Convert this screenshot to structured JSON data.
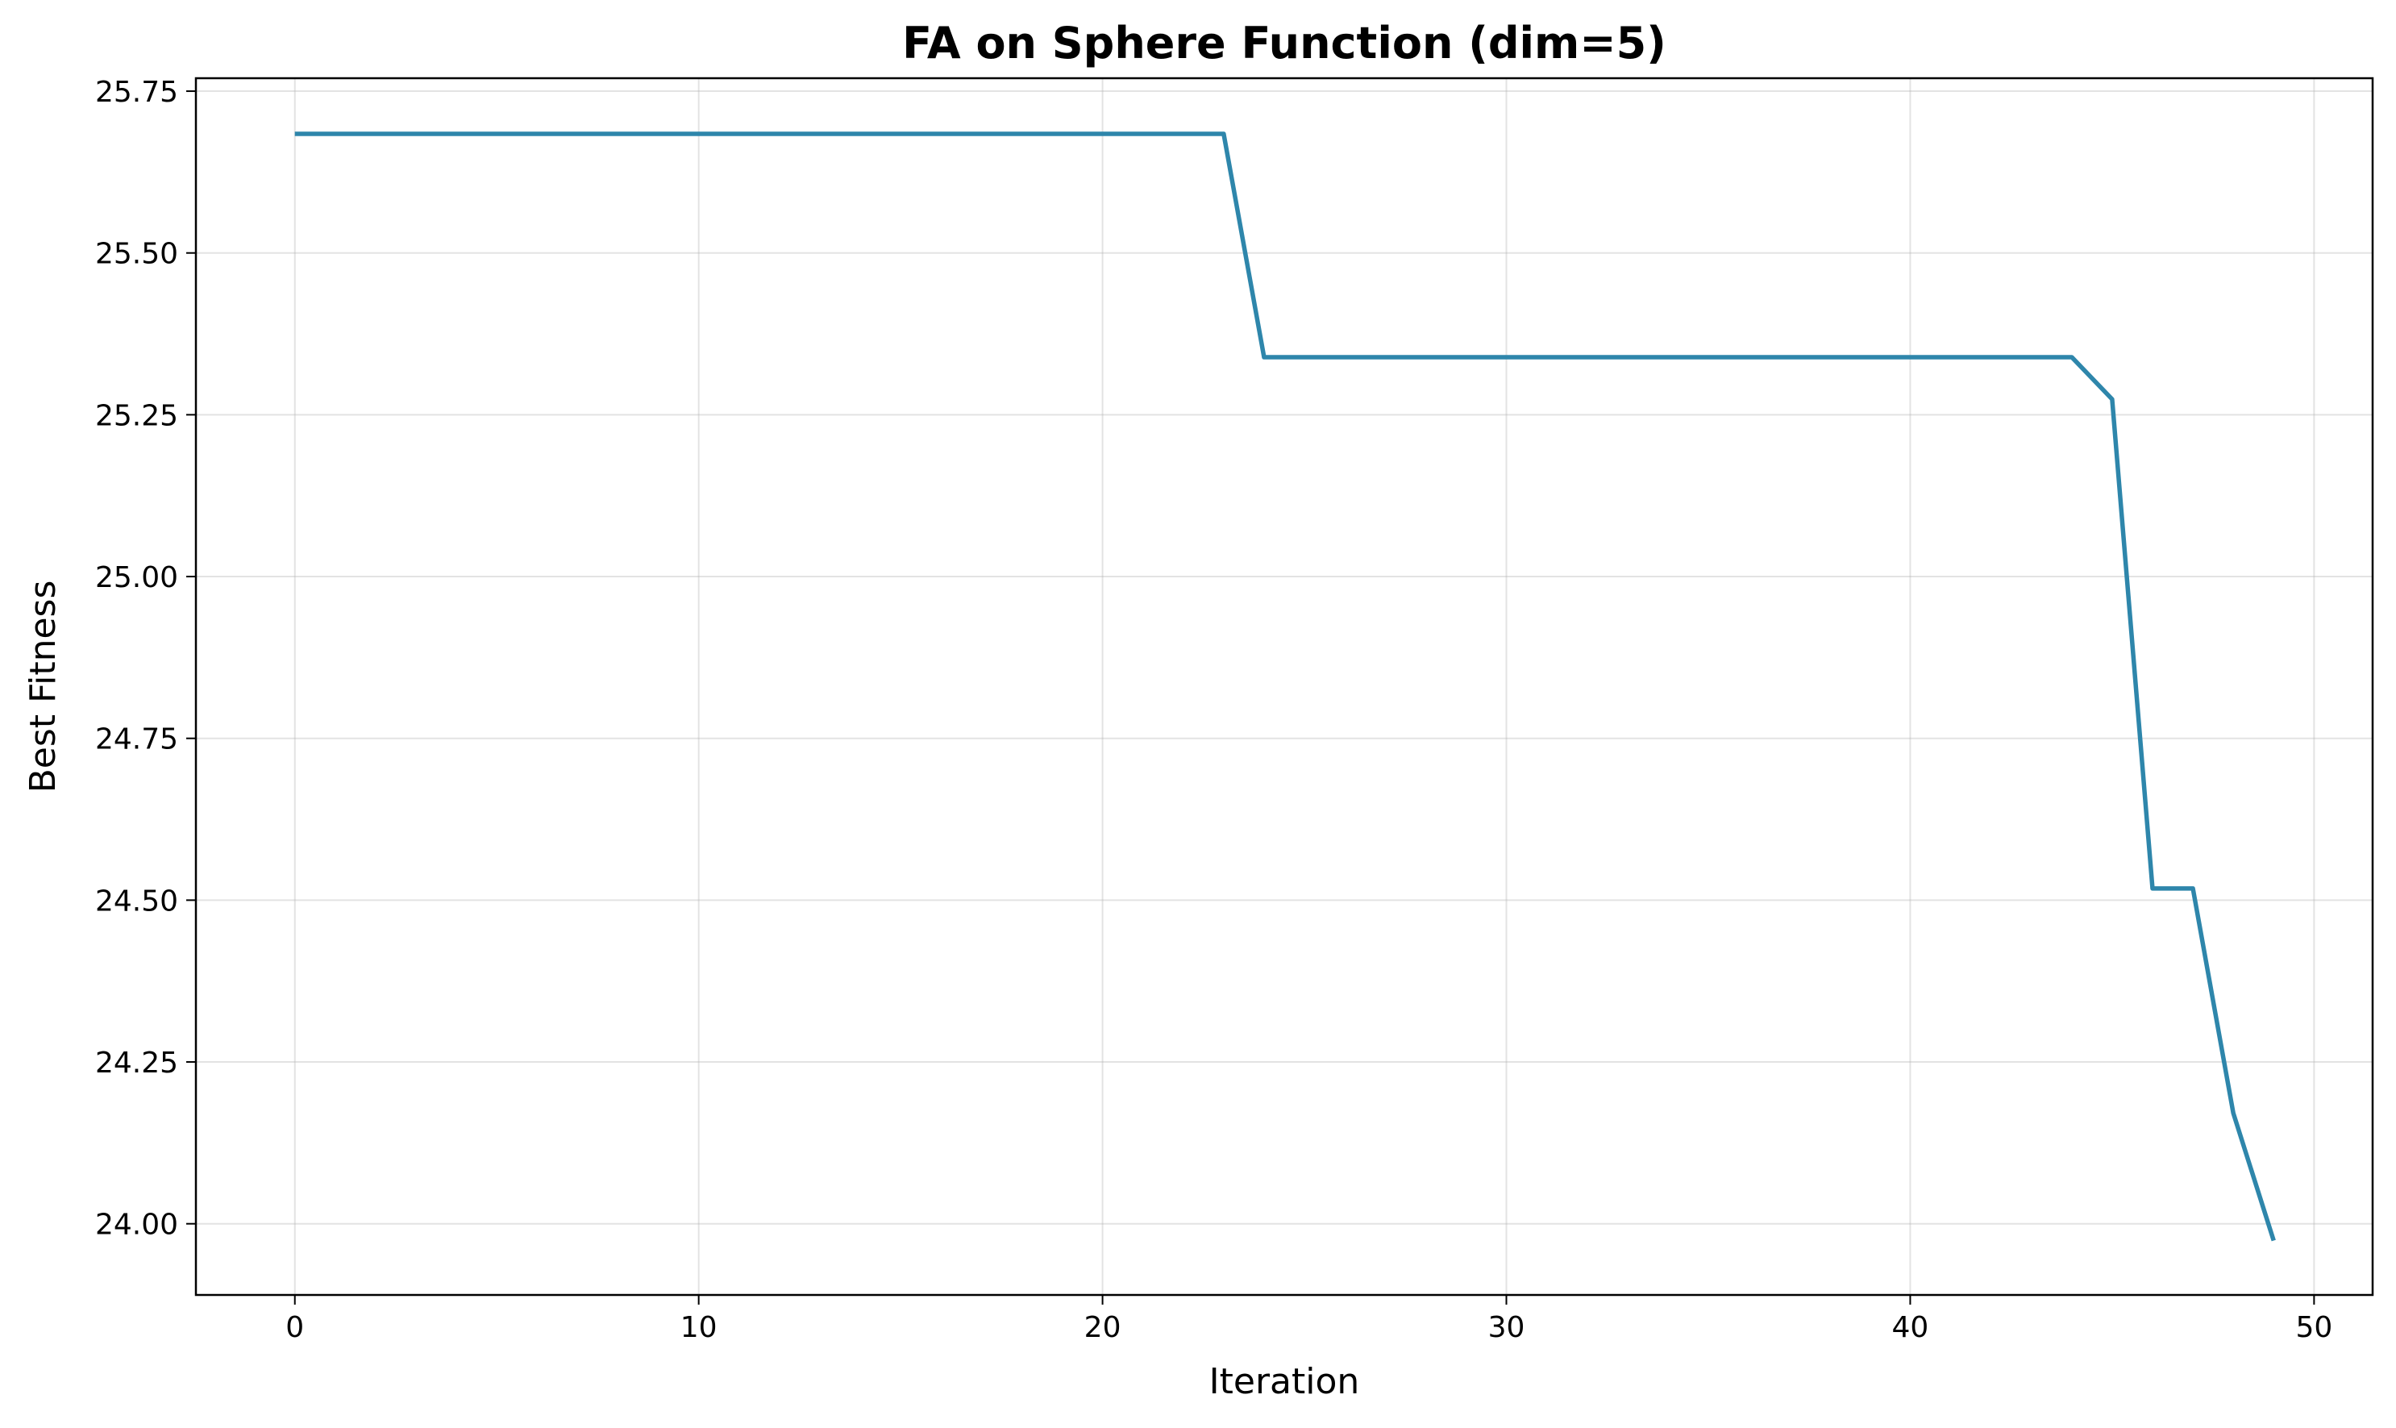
{
  "chart_data": {
    "type": "line",
    "title": "FA on Sphere Function (dim=5)",
    "xlabel": "Iteration",
    "ylabel": "Best Fitness",
    "xlim": [
      -2.45,
      51.45
    ],
    "ylim": [
      23.89,
      25.77
    ],
    "xticks": [
      0,
      10,
      20,
      30,
      40,
      50
    ],
    "xtick_labels": [
      "0",
      "10",
      "20",
      "30",
      "40",
      "50"
    ],
    "yticks": [
      24.0,
      24.25,
      24.5,
      24.75,
      25.0,
      25.25,
      25.5,
      25.75
    ],
    "ytick_labels": [
      "24.00",
      "24.25",
      "24.50",
      "24.75",
      "25.00",
      "25.25",
      "25.50",
      "25.75"
    ],
    "grid": true,
    "legend": "none",
    "line_color": "#2e86ab",
    "series": [
      {
        "x": [
          0,
          1,
          2,
          3,
          4,
          5,
          6,
          7,
          8,
          9,
          10,
          11,
          12,
          13,
          14,
          15,
          16,
          17,
          18,
          19,
          20,
          21,
          22,
          23,
          24,
          25,
          26,
          27,
          28,
          29,
          30,
          31,
          32,
          33,
          34,
          35,
          36,
          37,
          38,
          39,
          40,
          41,
          42,
          43,
          44,
          45,
          46,
          47,
          48,
          49
        ],
        "values": [
          25.684,
          25.684,
          25.684,
          25.684,
          25.684,
          25.684,
          25.684,
          25.684,
          25.684,
          25.684,
          25.684,
          25.684,
          25.684,
          25.684,
          25.684,
          25.684,
          25.684,
          25.684,
          25.684,
          25.684,
          25.684,
          25.684,
          25.684,
          25.684,
          25.339,
          25.339,
          25.339,
          25.339,
          25.339,
          25.339,
          25.339,
          25.339,
          25.339,
          25.339,
          25.339,
          25.339,
          25.339,
          25.339,
          25.339,
          25.339,
          25.339,
          25.339,
          25.339,
          25.339,
          25.339,
          25.274,
          24.518,
          24.518,
          24.171,
          23.974
        ]
      }
    ]
  }
}
